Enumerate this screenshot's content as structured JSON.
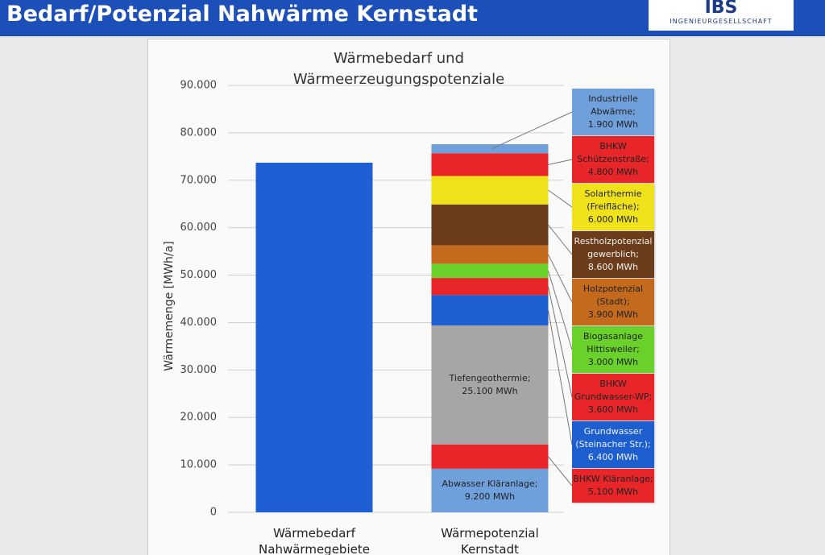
{
  "header": {
    "title": "Bedarf/Potenzial Nahwärme Kernstadt",
    "logo": "IBS",
    "logo_subtitle": "INGENIEURGESELLSCHAFT"
  },
  "chart_data": {
    "type": "bar",
    "stacked": true,
    "grid": true,
    "title": "Wärmebedarf und Wärmeerzeugungspotenziale",
    "ylabel": "Wärmemenge [MWh/a]",
    "categories": [
      "Wärmebedarf Nahwärmegebiete",
      "Wärmepotenzial Kernstadt"
    ],
    "ylim": [
      0,
      90000
    ],
    "yticks": [
      0,
      {
        "value": 10000,
        "label": "10.000"
      },
      {
        "value": 20000,
        "label": "20.000"
      },
      {
        "value": 30000,
        "label": "30.000"
      },
      {
        "value": 40000,
        "label": "40.000"
      },
      {
        "value": 50000,
        "label": "50.000"
      },
      {
        "value": 60000,
        "label": "60.000"
      },
      {
        "value": 70000,
        "label": "70.000"
      },
      {
        "value": 80000,
        "label": "80.000"
      },
      {
        "value": 90000,
        "label": "90.000"
      }
    ],
    "series": [
      {
        "color": "#1f5fd6",
        "values": [
          73700,
          null
        ]
      },
      {
        "name": "Abwasser Kläranlage;",
        "color": "#6fa0dc",
        "values": [
          null,
          9200
        ],
        "value_labels": [
          null,
          "9.200 MWh"
        ]
      },
      {
        "name": "BHKW Kläranlage;",
        "color": "#e8262a",
        "values": [
          null,
          5100
        ],
        "value_labels": [
          null,
          "5.100 MWh"
        ]
      },
      {
        "name": "Tiefengeothermie;",
        "color": "#a6a6a6",
        "values": [
          null,
          25100
        ],
        "value_labels": [
          null,
          "25.100 MWh"
        ]
      },
      {
        "name": "Grundwasser (Steinacher Str.);",
        "color": "#1d5fd0",
        "values": [
          null,
          6400
        ],
        "value_labels": [
          null,
          "6.400 MWh"
        ]
      },
      {
        "name": "BHKW Grundwasser-WP;",
        "color": "#e8262a",
        "values": [
          null,
          3600
        ],
        "value_labels": [
          null,
          "3.600 MWh"
        ]
      },
      {
        "name": "Biogasanlage Hittisweiler;",
        "color": "#6ad12a",
        "values": [
          null,
          3000
        ],
        "value_labels": [
          null,
          "3.000 MWh"
        ]
      },
      {
        "name": "Holzpotenzial (Stadt);",
        "color": "#c46a1c",
        "values": [
          null,
          3900
        ],
        "value_labels": [
          null,
          "3.900 MWh"
        ]
      },
      {
        "name": "Restholzpotenzial gewerblich;",
        "color": "#6b3d1a",
        "values": [
          null,
          8600
        ],
        "value_labels": [
          null,
          "8.600 MWh"
        ]
      },
      {
        "name": "Solarthermie (Freifläche);",
        "color": "#f0e21a",
        "values": [
          null,
          6000
        ],
        "value_labels": [
          null,
          "6.000 MWh"
        ]
      },
      {
        "name": "BHKW Schützenstraße;",
        "color": "#e8262a",
        "values": [
          null,
          4800
        ],
        "value_labels": [
          null,
          "4.800 MWh"
        ]
      },
      {
        "name": "Industrielle Abwärme;",
        "color": "#6fa0dc",
        "values": [
          null,
          1900
        ],
        "value_labels": [
          null,
          "1.900 MWh"
        ]
      }
    ]
  }
}
